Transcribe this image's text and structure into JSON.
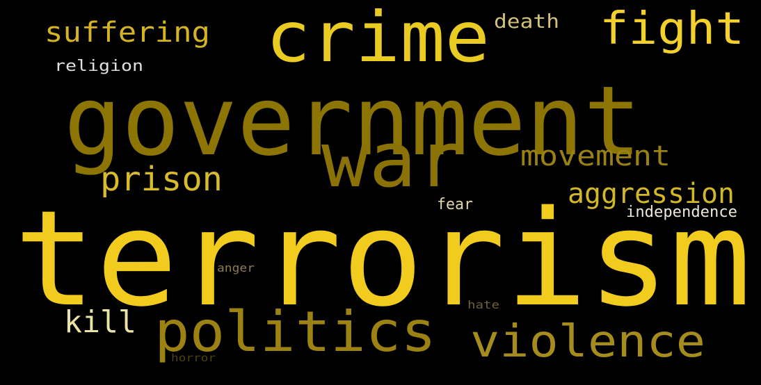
{
  "background": "#000000",
  "words": [
    {
      "text": "terrorism",
      "color": "#f2cb1f"
    },
    {
      "text": "government",
      "color": "#8c7405"
    },
    {
      "text": "war",
      "color": "#8a7206"
    },
    {
      "text": "crime",
      "color": "#eacb22"
    },
    {
      "text": "politics",
      "color": "#9c8212"
    },
    {
      "text": "violence",
      "color": "#a58c1c"
    },
    {
      "text": "fight",
      "color": "#f4d02c"
    },
    {
      "text": "suffering",
      "color": "#d4b422"
    },
    {
      "text": "prison",
      "color": "#d8bb2a"
    },
    {
      "text": "movement",
      "color": "#9a8114"
    },
    {
      "text": "aggression",
      "color": "#d2b728"
    },
    {
      "text": "kill",
      "color": "#ebe3a6"
    },
    {
      "text": "death",
      "color": "#d3c17a"
    },
    {
      "text": "religion",
      "color": "#e2e0dc"
    },
    {
      "text": "fear",
      "color": "#e2d8a8"
    },
    {
      "text": "independence",
      "color": "#ece8d8"
    },
    {
      "text": "anger",
      "color": "#8d7c55"
    },
    {
      "text": "hate",
      "color": "#6e6139"
    },
    {
      "text": "horror",
      "color": "#4c4112"
    }
  ]
}
